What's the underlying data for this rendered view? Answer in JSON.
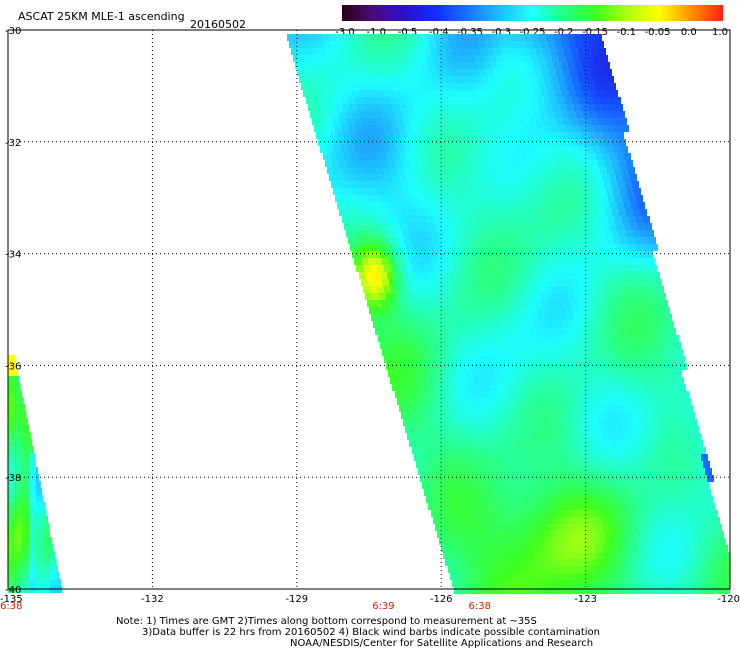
{
  "header": {
    "title": "ASCAT 25KM MLE-1 ascending",
    "date": "20160502"
  },
  "colorbar": {
    "labels": [
      "-3.0",
      "-1.0",
      "-0.5",
      "-0.4",
      "-0.35",
      "-0.3",
      "-0.25",
      "-0.2",
      "-0.15",
      "-0.1",
      "-0.05",
      "0.0",
      "1.0"
    ],
    "colors": [
      "#2a0010",
      "#4a0a80",
      "#2a10d0",
      "#1030ff",
      "#1878ff",
      "#20c0ff",
      "#20ffff",
      "#20ff80",
      "#40ff20",
      "#b0ff10",
      "#ffff00",
      "#ff9000",
      "#ff2010"
    ]
  },
  "map": {
    "lat_labels": [
      "-30",
      "-32",
      "-34",
      "-36",
      "-38",
      "-40"
    ],
    "lon_labels": [
      "-135",
      "-132",
      "-129",
      "-126",
      "-123",
      "-120"
    ],
    "time_labels": [
      {
        "text": "6:38",
        "lon": -135
      },
      {
        "text": "6:39",
        "lon": -127.2
      },
      {
        "text": "6:38",
        "lon": -125.2
      }
    ]
  },
  "notes": {
    "line1": "Note: 1) Times are GMT 2)Times along bottom correspond to measurement at ~35S",
    "line2": "3)Data buffer is 22 hrs from 20160502 4) Black wind barbs indicate possible contamination",
    "line3": "NOAA/NESDIS/Center for Satellite Applications and Research"
  }
}
